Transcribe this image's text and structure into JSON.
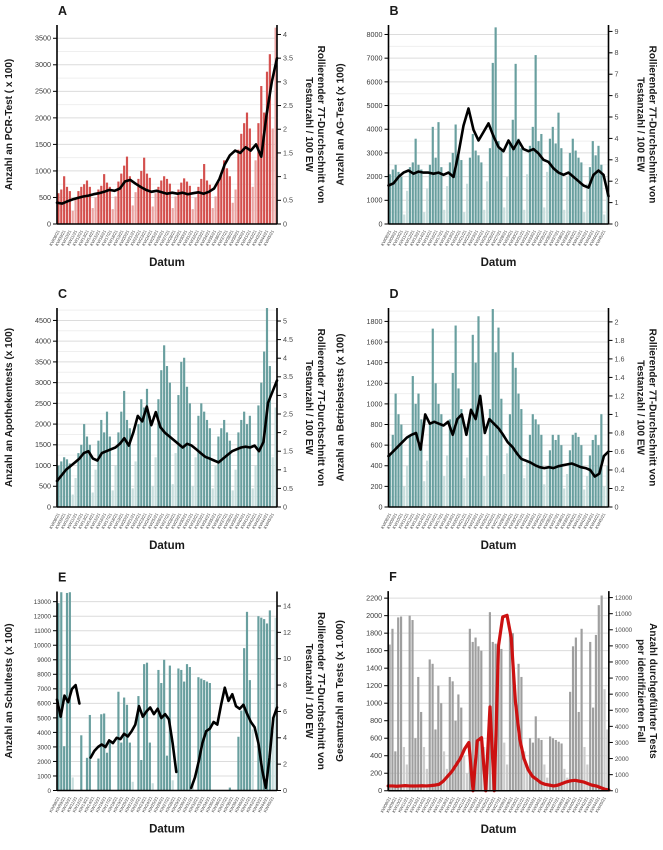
{
  "x_axis": {
    "label": "Datum",
    "week_labels": [
      "KW08/21",
      "KW09/21",
      "KW10/21",
      "KW11/21",
      "KW12/21",
      "KW13/21",
      "KW14/21",
      "KW15/21",
      "KW16/21",
      "KW17/21",
      "KW18/21",
      "KW19/21",
      "KW20/21",
      "KW21/21",
      "KW22/21",
      "KW23/21",
      "KW24/21",
      "KW25/21",
      "KW26/21",
      "KW27/21",
      "KW28/21",
      "KW29/21",
      "KW30/21",
      "KW31/21",
      "KW32/21",
      "KW33/21",
      "KW34/21",
      "KW35/21",
      "KW36/21",
      "KW37/21",
      "KW38/21",
      "KW39/21",
      "KW40/21",
      "KW41/21",
      "KW42/21",
      "KW43/21",
      "KW44/21",
      "KW45/21"
    ]
  },
  "chart_data": [
    {
      "panel": "A",
      "type": "bar",
      "title_left": "Anzahl an PCR-Test ( x 100)",
      "title_right_line1": "Rollierender 7T-Durchschnitt von",
      "title_right_line2": "Testanzahl / 100 EW",
      "bar_color": "#d4504e",
      "bar_color_light": "#e9a3a1",
      "line_color": "#000000",
      "ylim_left": [
        0,
        3750
      ],
      "yticks_left": [
        0,
        500,
        1000,
        1500,
        2000,
        2500,
        3000,
        3500
      ],
      "ylim_right": [
        0,
        4.2
      ],
      "yticks_right": [
        0,
        0.5,
        1,
        1.5,
        2,
        2.5,
        3,
        3.5,
        4
      ],
      "minor_grid": true,
      "bars": [
        580,
        650,
        900,
        700,
        620,
        250,
        480,
        620,
        700,
        750,
        820,
        700,
        300,
        500,
        650,
        720,
        940,
        780,
        700,
        280,
        520,
        800,
        950,
        1100,
        1270,
        900,
        350,
        600,
        850,
        1000,
        1250,
        950,
        870,
        330,
        580,
        700,
        820,
        900,
        850,
        760,
        300,
        520,
        650,
        780,
        860,
        800,
        720,
        280,
        500,
        700,
        850,
        1130,
        820,
        740,
        300,
        520,
        800,
        950,
        1200,
        1050,
        900,
        400,
        650,
        1400,
        1700,
        1900,
        2100,
        1800,
        700,
        1200,
        1900,
        2600,
        2100,
        2870,
        3200,
        1800,
        3700
      ],
      "line": [
        0.45,
        0.43,
        0.48,
        0.52,
        0.55,
        0.58,
        0.6,
        0.63,
        0.65,
        0.68,
        0.72,
        0.7,
        0.75,
        0.9,
        0.93,
        0.85,
        0.78,
        0.72,
        0.68,
        0.7,
        0.67,
        0.64,
        0.66,
        0.64,
        0.66,
        0.63,
        0.65,
        0.67,
        0.64,
        0.68,
        0.75,
        0.95,
        1.25,
        1.45,
        1.55,
        1.5,
        1.62,
        1.55,
        1.68,
        1.42,
        2.3,
        3.0,
        3.5
      ]
    },
    {
      "panel": "B",
      "type": "bar",
      "title_left": "Anzahl an AG-Test (x 100)",
      "title_right_line1": "Rollierender 7T-Durchschnitt von",
      "title_right_line2": "Testanzahl / 100 EW",
      "bar_color": "#699f9f",
      "bar_color_light": "#c8dedd",
      "line_color": "#000000",
      "ylim_left": [
        0,
        8400
      ],
      "yticks_left": [
        0,
        1000,
        2000,
        3000,
        4000,
        5000,
        6000,
        7000,
        8000
      ],
      "ylim_right": [
        0,
        9.3
      ],
      "yticks_right": [
        0,
        1,
        2,
        3,
        4,
        5,
        6,
        7,
        8,
        9
      ],
      "minor_grid": true,
      "bars": [
        2100,
        2300,
        2500,
        2200,
        2000,
        400,
        1400,
        2400,
        2600,
        3600,
        2500,
        2300,
        500,
        1500,
        2500,
        4100,
        2800,
        4300,
        2400,
        600,
        1600,
        2600,
        3000,
        4200,
        2900,
        2700,
        500,
        1700,
        2800,
        3800,
        3100,
        2900,
        2600,
        600,
        1800,
        3200,
        6800,
        8300,
        3500,
        3100,
        700,
        2000,
        3400,
        4400,
        6760,
        3600,
        3200,
        600,
        2100,
        3300,
        4100,
        7130,
        3500,
        3800,
        700,
        2200,
        3600,
        4100,
        3400,
        4700,
        3200,
        600,
        2000,
        3000,
        3600,
        3100,
        2800,
        2600,
        500,
        1700,
        2400,
        3500,
        2900,
        3300,
        2500,
        400,
        1500
      ],
      "line": [
        1.8,
        1.9,
        2.2,
        2.4,
        2.5,
        2.35,
        2.45,
        2.4,
        2.4,
        2.35,
        2.4,
        2.3,
        2.4,
        2.2,
        3.3,
        4.6,
        5.4,
        4.4,
        3.9,
        4.3,
        4.7,
        4.1,
        3.6,
        3.4,
        3.9,
        3.5,
        3.9,
        3.5,
        3.4,
        3.5,
        3.3,
        3.0,
        2.9,
        2.6,
        2.4,
        2.3,
        2.4,
        2.2,
        2.0,
        1.8,
        1.7,
        2.3,
        2.5,
        2.3,
        1.3
      ]
    },
    {
      "panel": "C",
      "type": "bar",
      "title_left": "Anzahl an Apothekentests (x 100)",
      "title_right_line1": "Rollierender 7T-Durchschnitt von",
      "title_right_line2": "Testanzahl / 100 EW",
      "bar_color": "#699f9f",
      "bar_color_light": "#c8dedd",
      "line_color": "#000000",
      "ylim_left": [
        0,
        4800
      ],
      "yticks_left": [
        0,
        500,
        1000,
        1500,
        2000,
        2500,
        3000,
        3500,
        4000,
        4500
      ],
      "ylim_right": [
        0,
        5.35
      ],
      "yticks_right": [
        0,
        0.5,
        1,
        1.5,
        2,
        2.5,
        3,
        3.5,
        4,
        4.5,
        5
      ],
      "minor_grid": true,
      "bars": [
        1000,
        1100,
        1200,
        1150,
        1050,
        300,
        700,
        1300,
        1500,
        2000,
        1700,
        1500,
        350,
        900,
        1600,
        2100,
        1800,
        2300,
        1700,
        400,
        1000,
        1800,
        2300,
        2800,
        2100,
        1900,
        450,
        1100,
        2000,
        2600,
        2400,
        2850,
        2200,
        500,
        1200,
        2600,
        3300,
        3900,
        3400,
        3000,
        550,
        1300,
        2700,
        3500,
        3600,
        2900,
        2500,
        500,
        1200,
        2200,
        2500,
        2300,
        2100,
        1900,
        450,
        1000,
        1700,
        1900,
        2100,
        1800,
        1600,
        400,
        900,
        1800,
        2100,
        2300,
        2000,
        2200,
        450,
        1000,
        2450,
        3000,
        3750,
        4800,
        3400,
        1200,
        2400
      ],
      "line": [
        0.7,
        0.85,
        1.0,
        1.1,
        1.2,
        1.3,
        1.45,
        1.5,
        1.3,
        1.25,
        1.45,
        1.5,
        1.55,
        1.6,
        1.7,
        1.85,
        1.65,
        2.0,
        2.45,
        2.3,
        2.7,
        2.2,
        2.55,
        2.15,
        2.0,
        1.9,
        1.8,
        1.7,
        1.6,
        1.7,
        1.65,
        1.55,
        1.45,
        1.35,
        1.3,
        1.25,
        1.2,
        1.3,
        1.4,
        1.5,
        1.55,
        1.6,
        1.62,
        1.6,
        1.65,
        1.5,
        1.75,
        2.8,
        3.1,
        3.4
      ]
    },
    {
      "panel": "D",
      "type": "bar",
      "title_left": "Anzahl an Betriebstests (x 100)",
      "title_right_line1": "Rollierender 7T-Durchschnitt von",
      "title_right_line2": "Testanzahl / 100 EW",
      "bar_color": "#699f9f",
      "bar_color_light": "#c8dedd",
      "line_color": "#000000",
      "ylim_left": [
        0,
        1930
      ],
      "yticks_left": [
        0,
        200,
        400,
        600,
        800,
        1000,
        1200,
        1400,
        1600,
        1800
      ],
      "ylim_right": [
        0,
        2.15
      ],
      "yticks_right": [
        0,
        0.2,
        0.4,
        0.6,
        0.8,
        1,
        1.2,
        1.4,
        1.6,
        1.8,
        2
      ],
      "minor_grid": true,
      "bars": [
        500,
        700,
        1100,
        900,
        800,
        200,
        400,
        700,
        1270,
        1000,
        1100,
        850,
        250,
        450,
        800,
        1730,
        1200,
        1000,
        900,
        300,
        500,
        850,
        1300,
        1760,
        1150,
        950,
        280,
        480,
        900,
        1670,
        1400,
        1850,
        1000,
        300,
        500,
        950,
        1920,
        1500,
        1740,
        1050,
        320,
        520,
        900,
        1500,
        1350,
        1100,
        950,
        280,
        450,
        700,
        900,
        850,
        800,
        700,
        220,
        380,
        550,
        700,
        650,
        700,
        600,
        180,
        320,
        550,
        700,
        720,
        680,
        600,
        170,
        300,
        500,
        650,
        700,
        600,
        900,
        200,
        400
      ],
      "line": [
        0.55,
        0.6,
        0.65,
        0.7,
        0.75,
        0.78,
        0.8,
        0.62,
        1.0,
        0.9,
        0.92,
        0.9,
        0.88,
        0.92,
        0.78,
        0.95,
        1.0,
        0.78,
        1.05,
        0.95,
        1.2,
        0.8,
        0.95,
        0.9,
        0.85,
        0.78,
        0.7,
        0.65,
        0.58,
        0.52,
        0.5,
        0.48,
        0.45,
        0.43,
        0.42,
        0.43,
        0.42,
        0.44,
        0.45,
        0.46,
        0.47,
        0.45,
        0.43,
        0.42,
        0.4,
        0.33,
        0.36,
        0.55,
        0.6
      ]
    },
    {
      "panel": "E",
      "type": "bar",
      "title_left": "Anzahl an Schultests (x 100)",
      "title_right_line1": "Rollierender 7T-Durchschnitt von",
      "title_right_line2": "Testanzahl / 100 EW",
      "bar_color": "#699f9f",
      "bar_color_light": "#c8dedd",
      "line_color": "#000000",
      "ylim_left": [
        0,
        13700
      ],
      "yticks_left": [
        0,
        1000,
        2000,
        3000,
        4000,
        5000,
        6000,
        7000,
        8000,
        9000,
        10000,
        11000,
        12000,
        13000
      ],
      "ylim_right": [
        0,
        15.1
      ],
      "yticks_right": [
        0,
        2,
        4,
        6,
        8,
        10,
        12,
        14
      ],
      "minor_grid": false,
      "bars": [
        12900,
        13650,
        3050,
        13600,
        13650,
        900,
        0,
        0,
        3800,
        0,
        2250,
        5200,
        0,
        0,
        2200,
        5250,
        5300,
        2600,
        3300,
        0,
        0,
        6800,
        3300,
        6400,
        5900,
        3300,
        600,
        0,
        6500,
        2100,
        8700,
        8800,
        3300,
        500,
        0,
        8300,
        7400,
        9000,
        2400,
        8600,
        700,
        0,
        8400,
        8300,
        7500,
        8700,
        8500,
        600,
        0,
        7800,
        7700,
        7600,
        7500,
        7400,
        0,
        0,
        0,
        0,
        0,
        0,
        200,
        0,
        0,
        3700,
        5500,
        9800,
        12300,
        7600,
        4200,
        0,
        12000,
        11900,
        11800,
        11500,
        12400,
        4100,
        11900
      ],
      "line": [
        6.9,
        5.6,
        7.2,
        6.7,
        7.7,
        8.0,
        6.6,
        null,
        null,
        2.5,
        3.0,
        3.3,
        3.5,
        3.3,
        3.8,
        3.6,
        4.0,
        3.9,
        4.3,
        4.1,
        4.5,
        5.0,
        6.4,
        5.6,
        6.0,
        6.3,
        5.8,
        6.2,
        5.5,
        5.8,
        5.4,
        3.6,
        1.4,
        null,
        null,
        null,
        0.2,
        1.0,
        2.2,
        3.6,
        4.5,
        4.7,
        5.2,
        5.0,
        6.5,
        7.8,
        6.8,
        7.3,
        6.4,
        6.2,
        6.5,
        5.8,
        5.2,
        4.8,
        3.6,
        1.6,
        0.2,
        2.5,
        5.5,
        6.3
      ]
    },
    {
      "panel": "F",
      "type": "bar",
      "title_left": "Gesamtzahl an Tests (x 1.000)",
      "title_right_line1": "Anzahl durchgeführter Tests",
      "title_right_line2": "per identifizierten Fall",
      "bar_color": "#9f9f9f",
      "bar_color_light": "#cccccc",
      "line_color": "#cc1111",
      "ylim_left": [
        0,
        2280
      ],
      "yticks_left": [
        0,
        200,
        400,
        600,
        800,
        1000,
        1200,
        1400,
        1600,
        1800,
        2000,
        2200
      ],
      "ylim_right": [
        0,
        12400
      ],
      "yticks_right": [
        0,
        1000,
        2000,
        3000,
        4000,
        5000,
        6000,
        7000,
        8000,
        9000,
        10000,
        11000,
        12000
      ],
      "minor_grid": false,
      "bars": [
        1670,
        1850,
        450,
        1980,
        1990,
        500,
        300,
        2000,
        1950,
        600,
        1300,
        900,
        500,
        250,
        1500,
        1450,
        700,
        1200,
        1000,
        450,
        250,
        1300,
        1250,
        800,
        1100,
        950,
        400,
        200,
        1850,
        1700,
        1750,
        1650,
        1600,
        500,
        300,
        2040,
        1700,
        1680,
        1650,
        1620,
        550,
        300,
        1850,
        1800,
        1000,
        1450,
        1300,
        450,
        250,
        600,
        550,
        850,
        600,
        580,
        300,
        150,
        620,
        600,
        580,
        560,
        540,
        250,
        150,
        1130,
        1650,
        1750,
        900,
        1850,
        500,
        300,
        1700,
        950,
        1780,
        2120,
        2230,
        1160,
        700
      ],
      "line": [
        300,
        300,
        280,
        300,
        320,
        300,
        290,
        300,
        310,
        300,
        320,
        350,
        400,
        600,
        900,
        1200,
        1600,
        2000,
        2600,
        3000,
        0,
        3100,
        3300,
        0,
        5200,
        0,
        9000,
        10800,
        10900,
        9500,
        5500,
        3200,
        2000,
        1300,
        900,
        700,
        500,
        400,
        350,
        300,
        350,
        450,
        550,
        620,
        650,
        600,
        550,
        450,
        350,
        300,
        200,
        100,
        50
      ]
    }
  ]
}
